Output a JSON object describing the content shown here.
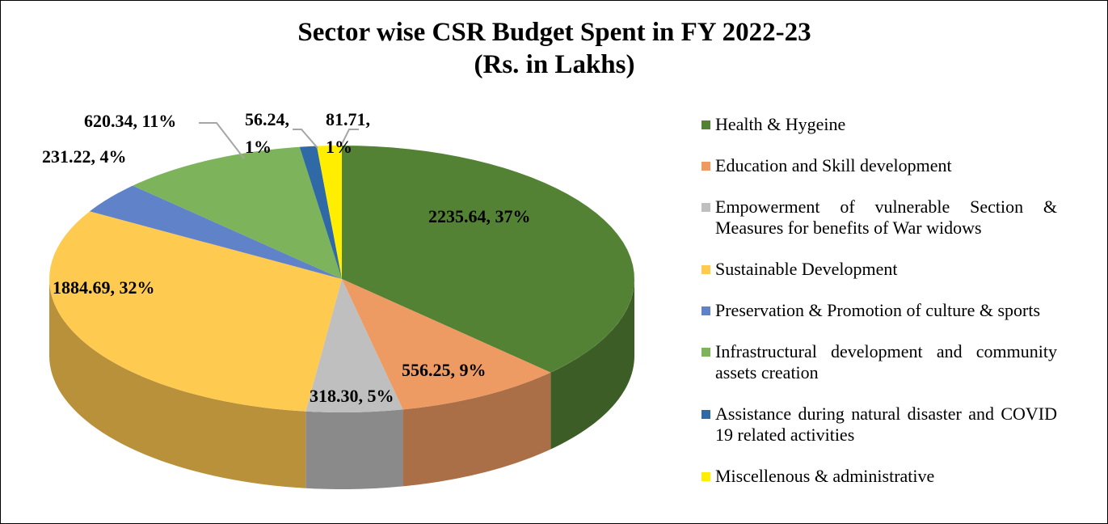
{
  "chart_data": {
    "type": "pie3d",
    "title": "Sector wise CSR Budget Spent in FY 2022-23",
    "subtitle": "(Rs. in Lakhs)",
    "categories": [
      "Health & Hygeine",
      "Education and Skill development",
      "Empowerment of vulnerable Section & Measures for benefits of War widows",
      "Sustainable Development",
      "Preservation & Promotion of culture & sports",
      "Infrastructural development and community assets creation",
      "Assistance during natural disaster and COVID 19 related activities",
      "Miscellenous & administrative"
    ],
    "values": [
      2235.64,
      556.25,
      318.3,
      1884.69,
      231.22,
      620.34,
      56.24,
      81.71
    ],
    "value_labels": [
      "2235.64, 37%",
      "556.25, 9%",
      "318.30, 5%",
      "1884.69, 32%",
      "231.22, 4%",
      "620.34, 11%",
      "56.24, 1%",
      "81.71, 1%"
    ],
    "colors": [
      "#548235",
      "#ee9a63",
      "#bfbfbf",
      "#ffca50",
      "#5f82c8",
      "#7db35a",
      "#2f6aa6",
      "#ffee00"
    ],
    "legend": "right"
  }
}
